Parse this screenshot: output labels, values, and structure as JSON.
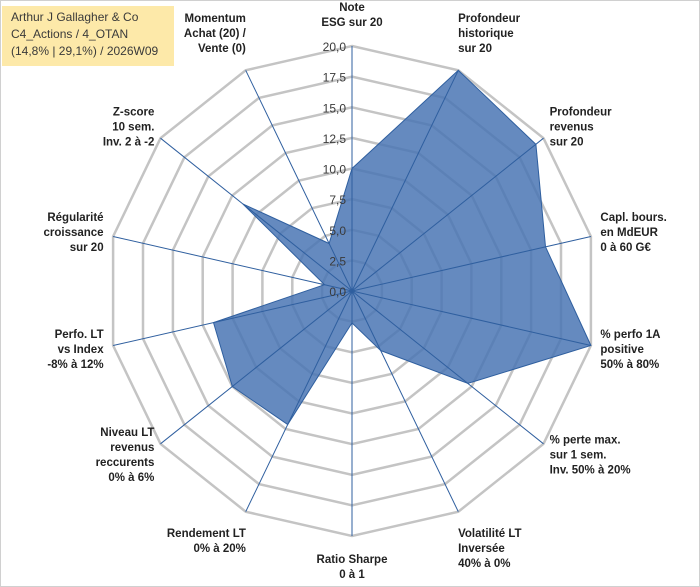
{
  "header": {
    "line1": "Arthur J Gallagher & Co",
    "line2": "C4_Actions / 4_OTAN",
    "line3": "(14,8% | 29,1%) / 2026W09"
  },
  "colors": {
    "fill": "#4a76b4",
    "stroke": "#2f5f9f",
    "grid": "#c4c4c4",
    "spoke": "#2f5f9f"
  },
  "chart_data": {
    "type": "radar",
    "ylim": [
      0,
      20
    ],
    "tick_values": [
      0,
      2.5,
      5,
      7.5,
      10,
      12.5,
      15,
      17.5,
      20
    ],
    "tick_labels": [
      "0,0",
      "2,5",
      "5,0",
      "7,5",
      "10,0",
      "12,5",
      "15,0",
      "17,5",
      "20,0"
    ],
    "categories": [
      [
        "Note",
        "ESG sur 20"
      ],
      [
        "Profondeur",
        "historique",
        "sur 20"
      ],
      [
        "Profondeur",
        "revenus",
        "sur 20"
      ],
      [
        "Capl. bours.",
        "en MdEUR",
        "0 à 60 G€"
      ],
      [
        "% perfo 1A",
        "positive",
        "50% à 80%"
      ],
      [
        "% perte max.",
        "sur 1 sem.",
        "Inv. 50% à 20%"
      ],
      [
        "Volatilité LT",
        "Inversée",
        "40% à 0%"
      ],
      [
        "Ratio Sharpe",
        "0 à 1"
      ],
      [
        "Rendement LT",
        "0% à 20%"
      ],
      [
        "Niveau LT",
        "revenus",
        "reccurents",
        "0% à 6%"
      ],
      [
        "Perfo. LT",
        "vs Index",
        "-8% à 12%"
      ],
      [
        "Régularité",
        "croissance",
        "sur 20"
      ],
      [
        "Z-score",
        "10 sem.",
        "Inv. 2 à -2"
      ],
      [
        "Momentum",
        "Achat (20) /",
        "Vente (0)"
      ]
    ],
    "series": [
      {
        "name": "Arthur J Gallagher & Co",
        "values": [
          10,
          20,
          19.2,
          16.2,
          20,
          12.1,
          5.4,
          2.6,
          12.1,
          12.5,
          11.6,
          2.3,
          11.4,
          4.3
        ]
      }
    ]
  }
}
